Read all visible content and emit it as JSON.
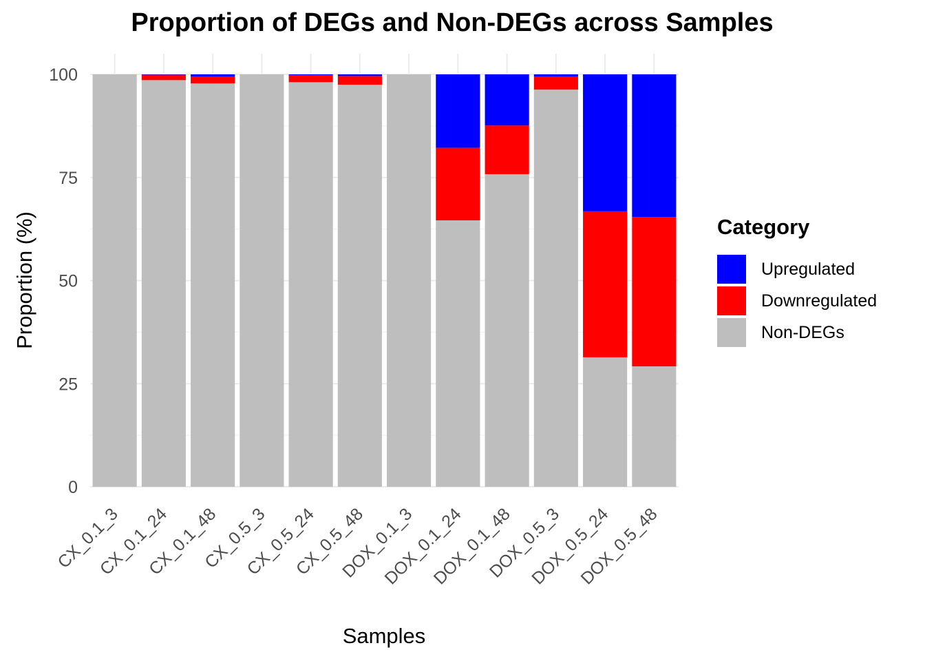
{
  "chart_data": {
    "type": "bar",
    "stacked": true,
    "title": "Proportion of DEGs and Non-DEGs across Samples",
    "xlabel": "Samples",
    "ylabel": "Proportion (%)",
    "ylim": [
      0,
      100
    ],
    "yticks": [
      0,
      25,
      50,
      75,
      100
    ],
    "grid": true,
    "legend_position": "right",
    "legend_title": "Category",
    "categories": [
      "CX_0.1_3",
      "CX_0.1_24",
      "CX_0.1_48",
      "CX_0.5_3",
      "CX_0.5_24",
      "CX_0.5_48",
      "DOX_0.1_3",
      "DOX_0.1_24",
      "DOX_0.1_48",
      "DOX_0.5_3",
      "DOX_0.5_24",
      "DOX_0.5_48"
    ],
    "series": [
      {
        "name": "Upregulated",
        "color": "#0000FF",
        "values": [
          0.0,
          0.1,
          0.5,
          0.0,
          0.2,
          0.4,
          0.0,
          17.8,
          12.4,
          0.5,
          33.2,
          34.6
        ]
      },
      {
        "name": "Downregulated",
        "color": "#FF0000",
        "values": [
          0.0,
          1.3,
          1.7,
          0.0,
          1.7,
          2.1,
          0.0,
          17.6,
          11.8,
          3.2,
          35.4,
          36.2
        ]
      },
      {
        "name": "Non-DEGs",
        "color": "#BEBEBE",
        "values": [
          100.0,
          98.6,
          97.8,
          100.0,
          98.1,
          97.5,
          100.0,
          64.6,
          75.8,
          96.3,
          31.4,
          29.2
        ]
      }
    ]
  }
}
